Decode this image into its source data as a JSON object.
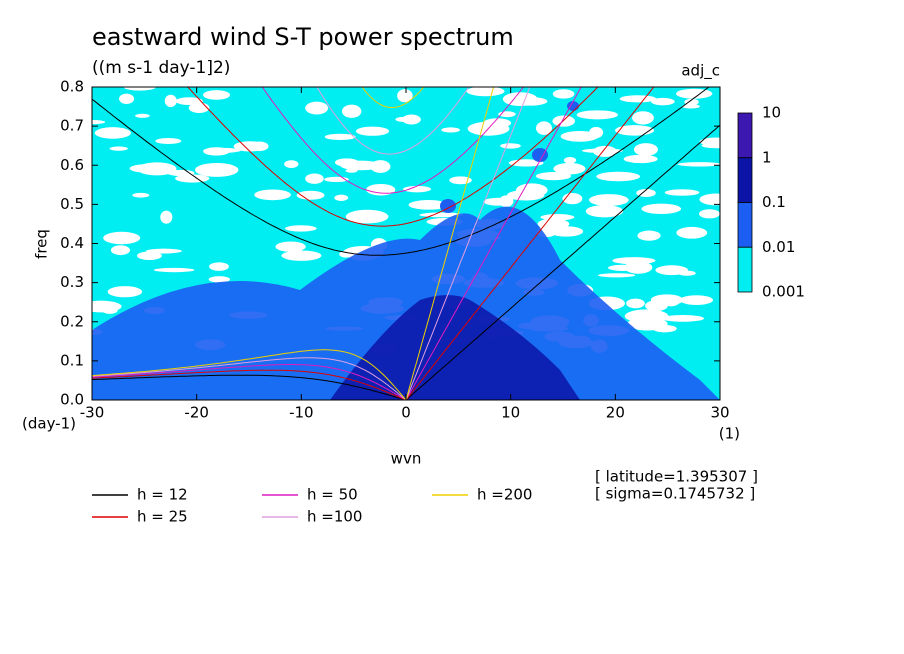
{
  "chart_data": {
    "type": "dispersion",
    "title": "eastward wind S-T power spectrum",
    "subtitle": "((m s-1 day-1]2)",
    "variable_label": "adj_c",
    "x_label": "wvn",
    "y_label": "freq",
    "x_unit": "(1)",
    "y_unit": "(day-1)",
    "xlim": [
      -30,
      30
    ],
    "xticks": [
      -30,
      -20,
      -10,
      0,
      10,
      20,
      30
    ],
    "ylim": [
      0,
      0.8
    ],
    "yticks": [
      {
        "value": 0,
        "label": "0.0"
      },
      0.1,
      0.2,
      0.3,
      0.4,
      0.5,
      0.6,
      0.7,
      0.8
    ],
    "colorbar": {
      "levels": [
        10,
        1,
        0.1,
        0.01,
        0.001
      ],
      "colors": [
        "#3c18b0",
        "#0c14a8",
        "#1c5ef2",
        "#00eef2"
      ]
    },
    "series": [
      {
        "name": "h = 12",
        "h": 12,
        "color": "#000000"
      },
      {
        "name": "h = 25",
        "h": 25,
        "color": "#e00000"
      },
      {
        "name": "h = 50",
        "h": 50,
        "color": "#e01cc0"
      },
      {
        "name": "h =100",
        "h": 100,
        "color": "#e0a0e0"
      },
      {
        "name": "h =200",
        "h": 200,
        "color": "#f0d000"
      }
    ],
    "notes": [
      "[ latitude=1.395307 ]",
      "[ sigma=0.1745732 ]"
    ]
  }
}
